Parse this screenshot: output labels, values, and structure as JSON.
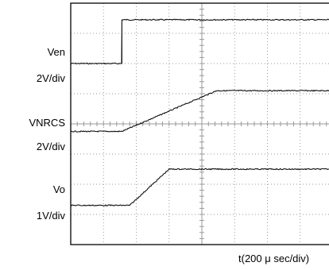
{
  "chart_data": {
    "type": "line",
    "x_axis_label": "t(200 μ sec/div)",
    "time_per_div_us": 200,
    "grid": true,
    "channels": [
      {
        "name": "Ven",
        "scale": "2V/div",
        "baseline_div": 6.0,
        "points": [
          [
            0.0,
            0.0
          ],
          [
            1.56,
            0.0
          ],
          [
            1.56,
            1.45
          ],
          [
            8.0,
            1.45
          ]
        ]
      },
      {
        "name": "VNRCS",
        "scale": "2V/div",
        "baseline_div": 3.75,
        "points": [
          [
            0.0,
            0.0
          ],
          [
            1.56,
            0.0
          ],
          [
            4.45,
            1.35
          ],
          [
            8.0,
            1.35
          ]
        ]
      },
      {
        "name": "Vo",
        "scale": "1V/div",
        "baseline_div": 1.3,
        "points": [
          [
            0.0,
            0.0
          ],
          [
            1.8,
            0.0
          ],
          [
            3.0,
            1.2
          ],
          [
            8.0,
            1.2
          ]
        ]
      }
    ]
  },
  "colors": {
    "trace": "#111111",
    "grid": "#9a9a9a",
    "frame": "#000000"
  }
}
